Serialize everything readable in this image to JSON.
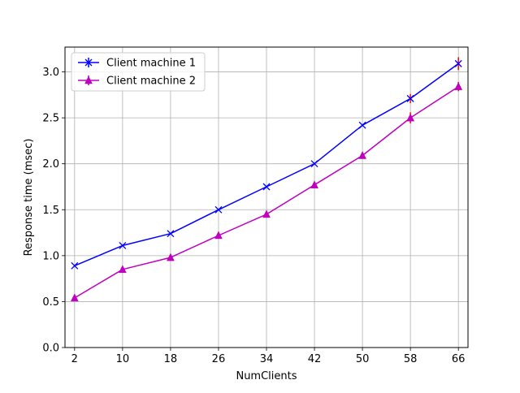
{
  "chart_data": {
    "type": "line",
    "title": "",
    "xlabel": "NumClients",
    "ylabel": "Response time (msec)",
    "categories": [
      "2",
      "10",
      "18",
      "26",
      "34",
      "42",
      "50",
      "58",
      "66"
    ],
    "x": [
      2,
      10,
      18,
      26,
      34,
      42,
      50,
      58,
      66
    ],
    "xlim": [
      0.4,
      67.6
    ],
    "ylim": [
      0.0,
      3.27
    ],
    "yticks": [
      "0.0",
      "0.5",
      "1.0",
      "1.5",
      "2.0",
      "2.5",
      "3.0"
    ],
    "ytick_values": [
      0.0,
      0.5,
      1.0,
      1.5,
      2.0,
      2.5,
      3.0
    ],
    "grid": true,
    "legend_position": "top-left",
    "series": [
      {
        "name": "Client machine 1",
        "color": "#0000ff",
        "marker": "x",
        "values": [
          0.89,
          1.11,
          1.24,
          1.5,
          1.75,
          2.0,
          2.42,
          2.71,
          3.09
        ],
        "errors": [
          0.0,
          0.0,
          0.0,
          0.0,
          0.0,
          0.0,
          0.0,
          0.05,
          0.07
        ]
      },
      {
        "name": "Client machine 2",
        "color": "#bf00bf",
        "marker": "triangle",
        "values": [
          0.54,
          0.85,
          0.98,
          1.22,
          1.45,
          1.77,
          2.09,
          2.5,
          2.84
        ],
        "errors": [
          0.0,
          0.0,
          0.0,
          0.0,
          0.0,
          0.0,
          0.0,
          0.06,
          0.05
        ]
      }
    ],
    "error_bar_color": "#ff0000"
  }
}
